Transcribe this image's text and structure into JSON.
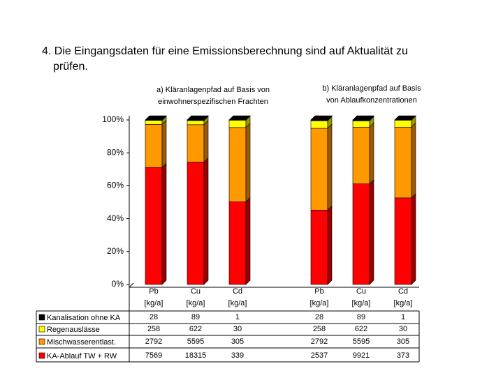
{
  "chart_data": {
    "type": "bar",
    "stacked": "percent",
    "title": "4. Die Eingangsdaten für eine Emissionsberechnung sind auf Aktualität zu prüfen.",
    "groups": [
      {
        "lines": [
          "a) Kläranlagenpfad auf Basis von",
          "einwohnerspezifischen Frachten"
        ]
      },
      {
        "lines": [
          "b) Kläranlagenpfad auf Basis",
          "von Ablaufkonzentrationen"
        ]
      }
    ],
    "categories": [
      "Pb",
      "Cu",
      "Cd",
      "Pb",
      "Cu",
      "Cd"
    ],
    "unit": "[kg/a]",
    "series": [
      {
        "name": "Kanalisation ohne KA",
        "color": "#000000",
        "values": [
          28,
          89,
          1,
          28,
          89,
          1
        ]
      },
      {
        "name": "Regenauslässe",
        "color": "#ffff00",
        "values": [
          258,
          622,
          30,
          258,
          622,
          30
        ]
      },
      {
        "name": "Mischwasserentlast.",
        "color": "#ff9900",
        "values": [
          2792,
          5595,
          305,
          2792,
          5595,
          305
        ]
      },
      {
        "name": "KA-Ablauf TW + RW",
        "color": "#ff0000",
        "values": [
          7569,
          18315,
          339,
          2537,
          9921,
          373
        ]
      }
    ],
    "ylim": [
      0,
      100
    ],
    "yticks": [
      {
        "value": 0,
        "label": "0%"
      },
      {
        "value": 20,
        "label": "20%"
      },
      {
        "value": 40,
        "label": "40%"
      },
      {
        "value": 60,
        "label": "60%"
      },
      {
        "value": 80,
        "label": "80%"
      },
      {
        "value": 100,
        "label": "100%"
      }
    ]
  }
}
